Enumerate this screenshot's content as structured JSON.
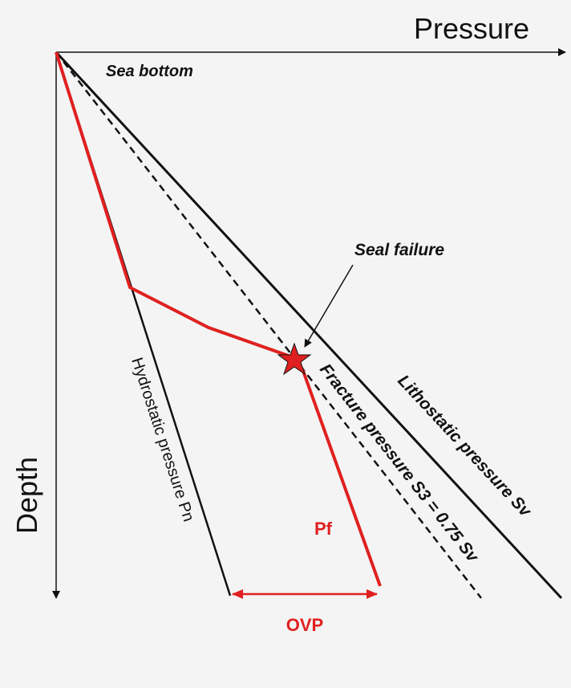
{
  "axes": {
    "x_label": "Pressure",
    "y_label": "Depth"
  },
  "labels": {
    "sea_bottom": "Sea bottom",
    "seal_failure": "Seal failure",
    "fracture": "Fracture pressure S3 = 0.75 Sv",
    "lithostatic": "Lithostatic pressure Sv",
    "hydrostatic": "Hydrostatic pressure Pn",
    "pf": "Pf",
    "ovp": "OVP"
  }
}
